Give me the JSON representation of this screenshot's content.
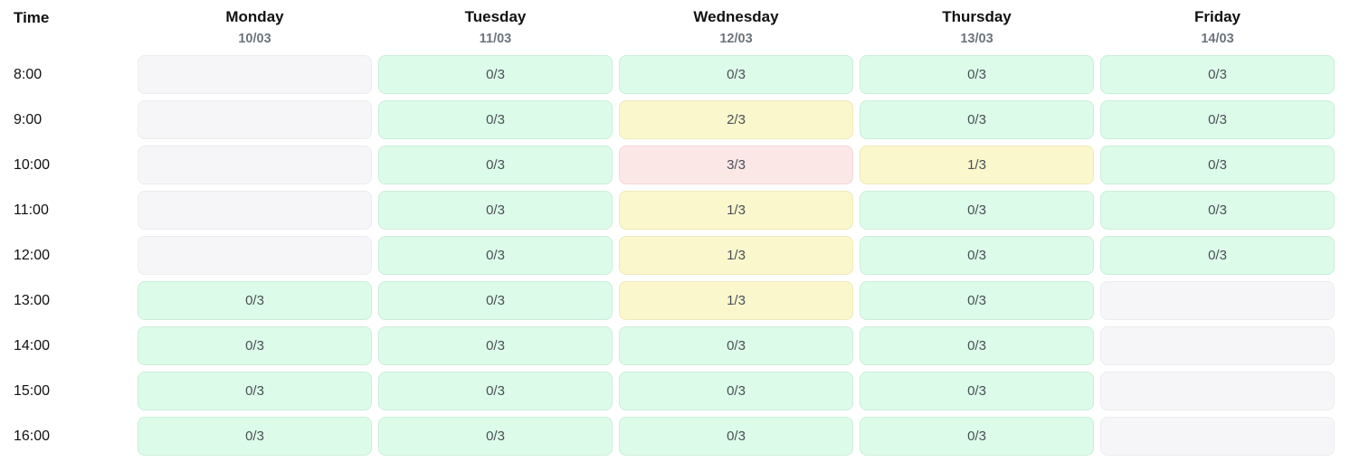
{
  "header": {
    "time_label": "Time",
    "days": [
      {
        "name": "Monday",
        "date": "10/03"
      },
      {
        "name": "Tuesday",
        "date": "11/03"
      },
      {
        "name": "Wednesday",
        "date": "12/03"
      },
      {
        "name": "Thursday",
        "date": "13/03"
      },
      {
        "name": "Friday",
        "date": "14/03"
      }
    ]
  },
  "grid": {
    "rows": [
      {
        "time": "8:00",
        "cells": [
          {
            "label": "",
            "status": "unavailable"
          },
          {
            "label": "0/3",
            "status": "available"
          },
          {
            "label": "0/3",
            "status": "available"
          },
          {
            "label": "0/3",
            "status": "available"
          },
          {
            "label": "0/3",
            "status": "available"
          }
        ]
      },
      {
        "time": "9:00",
        "cells": [
          {
            "label": "",
            "status": "unavailable"
          },
          {
            "label": "0/3",
            "status": "available"
          },
          {
            "label": "2/3",
            "status": "partial"
          },
          {
            "label": "0/3",
            "status": "available"
          },
          {
            "label": "0/3",
            "status": "available"
          }
        ]
      },
      {
        "time": "10:00",
        "cells": [
          {
            "label": "",
            "status": "unavailable"
          },
          {
            "label": "0/3",
            "status": "available"
          },
          {
            "label": "3/3",
            "status": "full"
          },
          {
            "label": "1/3",
            "status": "partial"
          },
          {
            "label": "0/3",
            "status": "available"
          }
        ]
      },
      {
        "time": "11:00",
        "cells": [
          {
            "label": "",
            "status": "unavailable"
          },
          {
            "label": "0/3",
            "status": "available"
          },
          {
            "label": "1/3",
            "status": "partial"
          },
          {
            "label": "0/3",
            "status": "available"
          },
          {
            "label": "0/3",
            "status": "available"
          }
        ]
      },
      {
        "time": "12:00",
        "cells": [
          {
            "label": "",
            "status": "unavailable"
          },
          {
            "label": "0/3",
            "status": "available"
          },
          {
            "label": "1/3",
            "status": "partial"
          },
          {
            "label": "0/3",
            "status": "available"
          },
          {
            "label": "0/3",
            "status": "available"
          }
        ]
      },
      {
        "time": "13:00",
        "cells": [
          {
            "label": "0/3",
            "status": "available"
          },
          {
            "label": "0/3",
            "status": "available"
          },
          {
            "label": "1/3",
            "status": "partial"
          },
          {
            "label": "0/3",
            "status": "available"
          },
          {
            "label": "",
            "status": "unavailable"
          }
        ]
      },
      {
        "time": "14:00",
        "cells": [
          {
            "label": "0/3",
            "status": "available"
          },
          {
            "label": "0/3",
            "status": "available"
          },
          {
            "label": "0/3",
            "status": "available"
          },
          {
            "label": "0/3",
            "status": "available"
          },
          {
            "label": "",
            "status": "unavailable"
          }
        ]
      },
      {
        "time": "15:00",
        "cells": [
          {
            "label": "0/3",
            "status": "available"
          },
          {
            "label": "0/3",
            "status": "available"
          },
          {
            "label": "0/3",
            "status": "available"
          },
          {
            "label": "0/3",
            "status": "available"
          },
          {
            "label": "",
            "status": "unavailable"
          }
        ]
      },
      {
        "time": "16:00",
        "cells": [
          {
            "label": "0/3",
            "status": "available"
          },
          {
            "label": "0/3",
            "status": "available"
          },
          {
            "label": "0/3",
            "status": "available"
          },
          {
            "label": "0/3",
            "status": "available"
          },
          {
            "label": "",
            "status": "unavailable"
          }
        ]
      }
    ]
  },
  "colors": {
    "available_bg": "#ddfbe9",
    "available_border": "#cbeeda",
    "partial_bg": "#fbf7cd",
    "partial_border": "#f0e9b9",
    "full_bg": "#fce7e7",
    "full_border": "#f4d7d8",
    "unavailable_bg": "#f6f6f8",
    "unavailable_border": "#ececef",
    "date_color": "#6c757d",
    "slot_text_color": "#495057"
  }
}
